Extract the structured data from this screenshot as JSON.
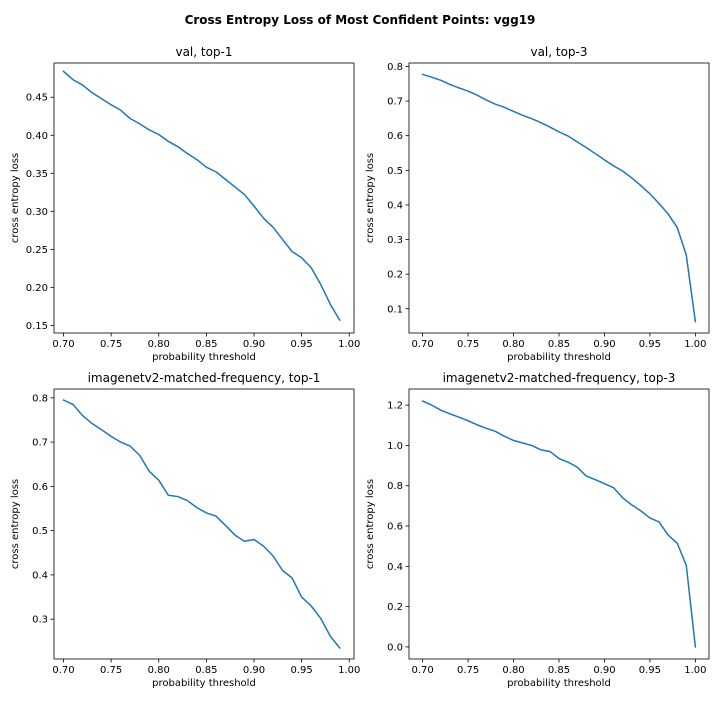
{
  "figure": {
    "suptitle": "Cross Entropy Loss of Most Confident Points: vgg19"
  },
  "chart_data": [
    {
      "type": "line",
      "title": "val, top-1",
      "xlabel": "probability threshold",
      "ylabel": "cross entropy loss",
      "xlim": [
        0.69,
        1.005
      ],
      "ylim": [
        0.14,
        0.495
      ],
      "xticks": [
        "0.70",
        "0.75",
        "0.80",
        "0.85",
        "0.90",
        "0.95",
        "1.00"
      ],
      "yticks": [
        "0.15",
        "0.20",
        "0.25",
        "0.30",
        "0.35",
        "0.40",
        "0.45"
      ],
      "color": "#1f77b4",
      "x": [
        0.7,
        0.71,
        0.72,
        0.73,
        0.74,
        0.75,
        0.76,
        0.77,
        0.78,
        0.79,
        0.8,
        0.81,
        0.82,
        0.83,
        0.84,
        0.85,
        0.86,
        0.87,
        0.88,
        0.89,
        0.9,
        0.91,
        0.92,
        0.93,
        0.94,
        0.95,
        0.96,
        0.97,
        0.98,
        0.99
      ],
      "y": [
        0.484,
        0.473,
        0.466,
        0.456,
        0.448,
        0.44,
        0.433,
        0.422,
        0.415,
        0.407,
        0.401,
        0.392,
        0.385,
        0.376,
        0.368,
        0.358,
        0.352,
        0.342,
        0.332,
        0.322,
        0.307,
        0.291,
        0.279,
        0.263,
        0.247,
        0.239,
        0.226,
        0.204,
        0.178,
        0.157
      ]
    },
    {
      "type": "line",
      "title": "val, top-3",
      "xlabel": "probability threshold",
      "ylabel": "cross entropy loss",
      "xlim": [
        0.685,
        1.015
      ],
      "ylim": [
        0.03,
        0.81
      ],
      "xticks": [
        "0.70",
        "0.75",
        "0.80",
        "0.85",
        "0.90",
        "0.95",
        "1.00"
      ],
      "yticks": [
        "0.1",
        "0.2",
        "0.3",
        "0.4",
        "0.5",
        "0.6",
        "0.7",
        "0.8"
      ],
      "color": "#1f77b4",
      "x": [
        0.7,
        0.71,
        0.72,
        0.73,
        0.74,
        0.75,
        0.76,
        0.77,
        0.78,
        0.79,
        0.8,
        0.81,
        0.82,
        0.83,
        0.84,
        0.85,
        0.86,
        0.87,
        0.88,
        0.89,
        0.9,
        0.91,
        0.92,
        0.93,
        0.94,
        0.95,
        0.96,
        0.97,
        0.98,
        0.99,
        1.0
      ],
      "y": [
        0.777,
        0.769,
        0.76,
        0.748,
        0.738,
        0.729,
        0.717,
        0.703,
        0.691,
        0.682,
        0.67,
        0.659,
        0.649,
        0.638,
        0.625,
        0.611,
        0.599,
        0.582,
        0.566,
        0.548,
        0.53,
        0.513,
        0.498,
        0.478,
        0.456,
        0.432,
        0.404,
        0.374,
        0.335,
        0.255,
        0.063
      ]
    },
    {
      "type": "line",
      "title": "imagenetv2-matched-frequency, top-1",
      "xlabel": "probability threshold",
      "ylabel": "cross entropy loss",
      "xlim": [
        0.69,
        1.005
      ],
      "ylim": [
        0.21,
        0.82
      ],
      "xticks": [
        "0.70",
        "0.75",
        "0.80",
        "0.85",
        "0.90",
        "0.95",
        "1.00"
      ],
      "yticks": [
        "0.3",
        "0.4",
        "0.5",
        "0.6",
        "0.7",
        "0.8"
      ],
      "color": "#1f77b4",
      "x": [
        0.7,
        0.71,
        0.72,
        0.73,
        0.74,
        0.75,
        0.76,
        0.77,
        0.78,
        0.79,
        0.8,
        0.81,
        0.82,
        0.83,
        0.84,
        0.85,
        0.86,
        0.87,
        0.88,
        0.89,
        0.9,
        0.91,
        0.92,
        0.93,
        0.94,
        0.95,
        0.96,
        0.97,
        0.98,
        0.99
      ],
      "y": [
        0.795,
        0.785,
        0.76,
        0.742,
        0.728,
        0.713,
        0.7,
        0.691,
        0.67,
        0.634,
        0.614,
        0.58,
        0.577,
        0.568,
        0.552,
        0.54,
        0.533,
        0.512,
        0.49,
        0.476,
        0.48,
        0.465,
        0.443,
        0.41,
        0.393,
        0.35,
        0.33,
        0.302,
        0.262,
        0.235
      ]
    },
    {
      "type": "line",
      "title": "imagenetv2-matched-frequency, top-3",
      "xlabel": "probability threshold",
      "ylabel": "cross entropy loss",
      "xlim": [
        0.685,
        1.015
      ],
      "ylim": [
        -0.06,
        1.28
      ],
      "xticks": [
        "0.70",
        "0.75",
        "0.80",
        "0.85",
        "0.90",
        "0.95",
        "1.00"
      ],
      "yticks": [
        "0.0",
        "0.2",
        "0.4",
        "0.6",
        "0.8",
        "1.0",
        "1.2"
      ],
      "color": "#1f77b4",
      "x": [
        0.7,
        0.71,
        0.72,
        0.73,
        0.74,
        0.75,
        0.76,
        0.77,
        0.78,
        0.79,
        0.8,
        0.81,
        0.82,
        0.83,
        0.84,
        0.85,
        0.86,
        0.87,
        0.88,
        0.89,
        0.9,
        0.91,
        0.92,
        0.93,
        0.94,
        0.95,
        0.96,
        0.97,
        0.98,
        0.99,
        1.0
      ],
      "y": [
        1.22,
        1.2,
        1.175,
        1.157,
        1.14,
        1.122,
        1.102,
        1.085,
        1.07,
        1.045,
        1.025,
        1.012,
        1.0,
        0.978,
        0.97,
        0.935,
        0.917,
        0.892,
        0.848,
        0.83,
        0.81,
        0.79,
        0.74,
        0.705,
        0.675,
        0.64,
        0.62,
        0.555,
        0.515,
        0.405,
        0.0
      ]
    }
  ]
}
